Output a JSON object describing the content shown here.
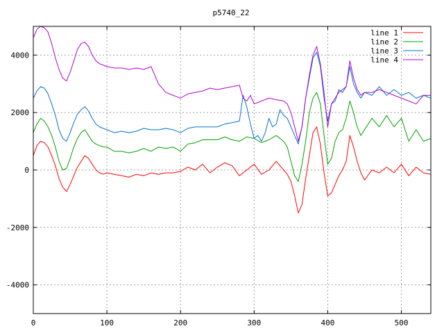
{
  "chart_data": {
    "type": "line",
    "title": "p5740_22",
    "xlabel": "",
    "ylabel": "",
    "xlim": [
      0,
      540
    ],
    "ylim": [
      -5000,
      5000
    ],
    "xticks": [
      0,
      100,
      200,
      300,
      400,
      500
    ],
    "yticks": [
      -4000,
      -2000,
      0,
      2000,
      4000
    ],
    "grid": true,
    "legend_position": "top-right",
    "series": [
      {
        "name": "line 1",
        "color": "#ff0000",
        "x": [
          0,
          5,
          10,
          15,
          20,
          25,
          30,
          35,
          40,
          45,
          50,
          55,
          60,
          65,
          70,
          75,
          80,
          85,
          90,
          95,
          100,
          110,
          120,
          130,
          140,
          150,
          160,
          170,
          180,
          190,
          200,
          210,
          220,
          230,
          240,
          250,
          260,
          270,
          280,
          290,
          300,
          310,
          320,
          330,
          340,
          345,
          350,
          355,
          360,
          365,
          370,
          375,
          380,
          385,
          390,
          395,
          400,
          405,
          410,
          415,
          420,
          425,
          430,
          435,
          440,
          445,
          450,
          460,
          470,
          480,
          490,
          500,
          510,
          520,
          530,
          540
        ],
        "values": [
          500,
          850,
          1000,
          950,
          800,
          500,
          150,
          -300,
          -600,
          -750,
          -500,
          -200,
          100,
          300,
          500,
          400,
          200,
          0,
          -100,
          -150,
          -100,
          -150,
          -200,
          -250,
          -150,
          -200,
          -100,
          -150,
          -100,
          -100,
          -50,
          100,
          0,
          200,
          -100,
          100,
          250,
          150,
          -200,
          0,
          200,
          -150,
          0,
          300,
          0,
          -150,
          -400,
          -900,
          -1500,
          -1200,
          -300,
          500,
          1300,
          1500,
          900,
          -100,
          -900,
          -800,
          -500,
          -200,
          0,
          300,
          1200,
          800,
          300,
          -100,
          -350,
          0,
          -100,
          100,
          -100,
          200,
          -200,
          100,
          -100,
          -150
        ]
      },
      {
        "name": "line 2",
        "color": "#00a000",
        "x": [
          0,
          5,
          10,
          15,
          20,
          25,
          30,
          35,
          40,
          45,
          50,
          55,
          60,
          65,
          70,
          75,
          80,
          85,
          90,
          95,
          100,
          110,
          120,
          130,
          140,
          150,
          160,
          170,
          180,
          190,
          200,
          210,
          220,
          230,
          240,
          250,
          260,
          270,
          280,
          290,
          300,
          310,
          320,
          330,
          340,
          345,
          350,
          355,
          360,
          365,
          370,
          375,
          380,
          385,
          390,
          395,
          400,
          405,
          410,
          415,
          420,
          425,
          430,
          435,
          440,
          445,
          450,
          460,
          470,
          480,
          490,
          500,
          510,
          520,
          530,
          540
        ],
        "values": [
          1300,
          1600,
          1800,
          1700,
          1500,
          1200,
          800,
          300,
          0,
          50,
          400,
          800,
          1100,
          1300,
          1400,
          1200,
          1000,
          900,
          850,
          800,
          800,
          650,
          650,
          600,
          650,
          750,
          650,
          800,
          750,
          800,
          650,
          900,
          950,
          1050,
          1050,
          1050,
          1150,
          1050,
          1000,
          1150,
          1100,
          950,
          1050,
          1200,
          1000,
          800,
          300,
          -200,
          -400,
          200,
          1000,
          2000,
          2500,
          2700,
          2300,
          1200,
          200,
          400,
          1000,
          1300,
          1400,
          1800,
          2400,
          2000,
          1500,
          1200,
          1400,
          1800,
          1500,
          1900,
          1500,
          1800,
          1000,
          1400,
          1000,
          1100
        ]
      },
      {
        "name": "line 3",
        "color": "#0070d0",
        "x": [
          0,
          5,
          10,
          15,
          20,
          25,
          30,
          35,
          40,
          45,
          50,
          55,
          60,
          65,
          70,
          75,
          80,
          85,
          90,
          95,
          100,
          110,
          120,
          130,
          140,
          150,
          160,
          170,
          180,
          190,
          200,
          210,
          220,
          230,
          240,
          250,
          260,
          270,
          280,
          285,
          290,
          295,
          300,
          305,
          310,
          315,
          320,
          325,
          330,
          335,
          340,
          345,
          350,
          355,
          360,
          365,
          370,
          375,
          380,
          385,
          390,
          395,
          400,
          405,
          410,
          415,
          420,
          425,
          430,
          435,
          440,
          445,
          450,
          460,
          470,
          480,
          490,
          500,
          510,
          520,
          530,
          540
        ],
        "values": [
          2500,
          2750,
          2900,
          2850,
          2650,
          2300,
          1900,
          1400,
          1100,
          1000,
          1300,
          1650,
          1950,
          2100,
          2200,
          2050,
          1800,
          1600,
          1500,
          1450,
          1400,
          1300,
          1350,
          1300,
          1350,
          1450,
          1400,
          1400,
          1450,
          1400,
          1300,
          1450,
          1500,
          1500,
          1500,
          1500,
          1600,
          1650,
          1700,
          2600,
          2200,
          1600,
          1100,
          1200,
          1000,
          1300,
          1800,
          1500,
          1600,
          2100,
          1900,
          1800,
          1500,
          1200,
          900,
          1500,
          2500,
          3200,
          3900,
          4100,
          3600,
          2500,
          1700,
          2300,
          2400,
          2800,
          2700,
          2900,
          3600,
          3000,
          2700,
          2500,
          2700,
          2600,
          2900,
          2600,
          2800,
          2600,
          2700,
          2500,
          2600,
          2500
        ]
      },
      {
        "name": "line 4",
        "color": "#b000d0",
        "x": [
          0,
          5,
          10,
          15,
          20,
          25,
          30,
          35,
          40,
          45,
          50,
          55,
          60,
          65,
          70,
          75,
          80,
          85,
          90,
          95,
          100,
          110,
          120,
          130,
          140,
          150,
          160,
          170,
          180,
          190,
          200,
          210,
          220,
          230,
          240,
          250,
          260,
          270,
          280,
          285,
          290,
          295,
          300,
          310,
          320,
          330,
          340,
          345,
          350,
          355,
          360,
          365,
          370,
          375,
          380,
          385,
          390,
          395,
          400,
          405,
          410,
          415,
          420,
          425,
          430,
          435,
          440,
          445,
          450,
          460,
          470,
          480,
          490,
          500,
          510,
          520,
          530,
          540
        ],
        "values": [
          4600,
          4900,
          5000,
          4950,
          4800,
          4400,
          3900,
          3500,
          3200,
          3100,
          3400,
          3800,
          4200,
          4400,
          4450,
          4300,
          4000,
          3800,
          3700,
          3650,
          3600,
          3550,
          3550,
          3500,
          3550,
          3500,
          3600,
          3000,
          2700,
          2600,
          2500,
          2650,
          2700,
          2750,
          2850,
          2800,
          2850,
          2900,
          2950,
          2500,
          2400,
          2600,
          2300,
          2400,
          2500,
          2450,
          2400,
          2300,
          2000,
          1500,
          1000,
          1500,
          2500,
          3300,
          4000,
          4300,
          3700,
          2700,
          1500,
          2300,
          2500,
          2700,
          2800,
          2900,
          3800,
          3200,
          2800,
          2600,
          2700,
          2700,
          2800,
          2700,
          2600,
          2500,
          2400,
          2300,
          2600,
          2600
        ]
      }
    ]
  }
}
